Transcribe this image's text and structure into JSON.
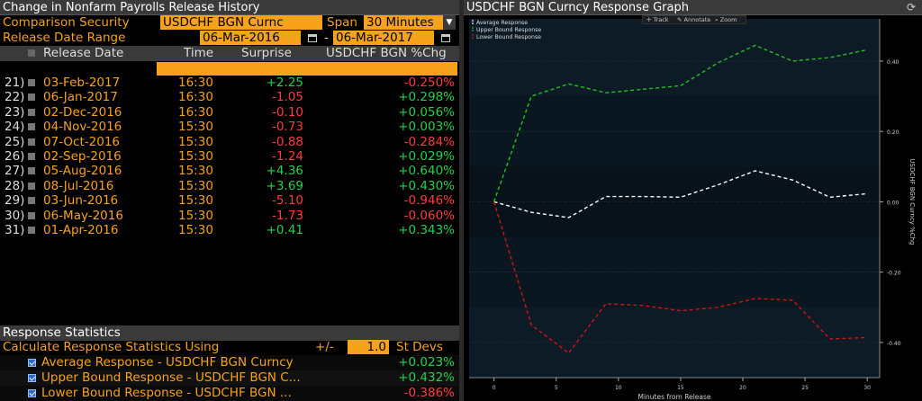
{
  "left_panel": {
    "title": "Change in Nonfarm Payrolls Release History",
    "comparison_label": "Comparison Security",
    "comparison_value": "USDCHF BGN Curnc",
    "span_label": "Span",
    "span_value": "30 Minutes",
    "release_range_label": "Release Date Range",
    "date_from": "06-Mar-2016",
    "date_sep": "-",
    "date_to": "06-Mar-2017",
    "columns": {
      "release_date": "Release Date",
      "time": "Time",
      "surprise": "Surprise",
      "pct_chg": "USDCHF BGN %Chg"
    },
    "rows": [
      {
        "num": "21)",
        "date": "03-Feb-2017",
        "time": "16:30",
        "surprise": "+2.25",
        "chg": "-0.250%"
      },
      {
        "num": "22)",
        "date": "06-Jan-2017",
        "time": "16:30",
        "surprise": "-1.05",
        "chg": "+0.298%"
      },
      {
        "num": "23)",
        "date": "02-Dec-2016",
        "time": "16:30",
        "surprise": "-0.10",
        "chg": "+0.056%"
      },
      {
        "num": "24)",
        "date": "04-Nov-2016",
        "time": "15:30",
        "surprise": "-0.73",
        "chg": "+0.003%"
      },
      {
        "num": "25)",
        "date": "07-Oct-2016",
        "time": "15:30",
        "surprise": "-0.88",
        "chg": "-0.284%"
      },
      {
        "num": "26)",
        "date": "02-Sep-2016",
        "time": "15:30",
        "surprise": "-1.24",
        "chg": "+0.029%"
      },
      {
        "num": "27)",
        "date": "05-Aug-2016",
        "time": "15:30",
        "surprise": "+4.36",
        "chg": "+0.640%"
      },
      {
        "num": "28)",
        "date": "08-Jul-2016",
        "time": "15:30",
        "surprise": "+3.69",
        "chg": "+0.430%"
      },
      {
        "num": "29)",
        "date": "03-Jun-2016",
        "time": "15:30",
        "surprise": "-5.10",
        "chg": "-0.946%"
      },
      {
        "num": "30)",
        "date": "06-May-2016",
        "time": "15:30",
        "surprise": "-1.73",
        "chg": "-0.060%"
      },
      {
        "num": "31)",
        "date": "01-Apr-2016",
        "time": "15:30",
        "surprise": "+0.41",
        "chg": "+0.343%"
      }
    ],
    "stats_title": "Response Statistics",
    "calc_label": "Calculate Response Statistics Using",
    "plusminus": "+/-",
    "stdev_value": "1.0",
    "stdev_label": "St Devs",
    "stats": [
      {
        "label": "Average Response - USDCHF BGN Curncy",
        "value": "+0.023%"
      },
      {
        "label": "Upper Bound Response - USDCHF BGN C...",
        "value": "+0.432%"
      },
      {
        "label": "Lower Bound Response - USDCHF BGN ...",
        "value": "-0.386%"
      }
    ]
  },
  "graph": {
    "title": "USDCHF BGN Curncy Response Graph",
    "tools": [
      "Track",
      "Annotate",
      "Zoom"
    ]
  },
  "colors": {
    "accent": "#f6a21a",
    "positive": "#23d14a",
    "negative": "#ff3b3b",
    "average": "#ffffff",
    "upper": "#1fc41f",
    "lower": "#d01515"
  },
  "chart_data": {
    "type": "line",
    "title": "",
    "xlabel": "Minutes from Release",
    "ylabel": "USDCHF BGN Curncy %Chg",
    "xlim": [
      -2,
      31
    ],
    "ylim": [
      -0.5,
      0.52
    ],
    "xticks": [
      0,
      5,
      10,
      15,
      20,
      25,
      30
    ],
    "yticks": [
      0.4,
      0.2,
      0.0,
      -0.2,
      -0.4
    ],
    "ytick_labels": [
      "0.40",
      "0.20",
      "0.00",
      "-0.20",
      "-0.40"
    ],
    "legend_position": "top-left",
    "series": [
      {
        "name": "Average Response",
        "color": "#ffffff",
        "x": [
          0,
          3,
          6,
          9,
          12,
          15,
          18,
          21,
          24,
          27,
          30
        ],
        "values": [
          0.0,
          -0.03,
          -0.045,
          0.015,
          0.015,
          0.013,
          0.048,
          0.088,
          0.062,
          0.013,
          0.023
        ]
      },
      {
        "name": "Upper Bound Response",
        "color": "#1fc41f",
        "x": [
          0,
          3,
          6,
          9,
          12,
          15,
          18,
          21,
          24,
          27,
          30
        ],
        "values": [
          0.0,
          0.3,
          0.335,
          0.31,
          0.32,
          0.33,
          0.395,
          0.445,
          0.4,
          0.41,
          0.432
        ]
      },
      {
        "name": "Lower Bound Response",
        "color": "#d01515",
        "x": [
          0,
          3,
          6,
          9,
          12,
          15,
          18,
          21,
          24,
          27,
          30
        ],
        "values": [
          0.0,
          -0.35,
          -0.43,
          -0.29,
          -0.295,
          -0.31,
          -0.3,
          -0.275,
          -0.28,
          -0.39,
          -0.386
        ]
      }
    ]
  }
}
